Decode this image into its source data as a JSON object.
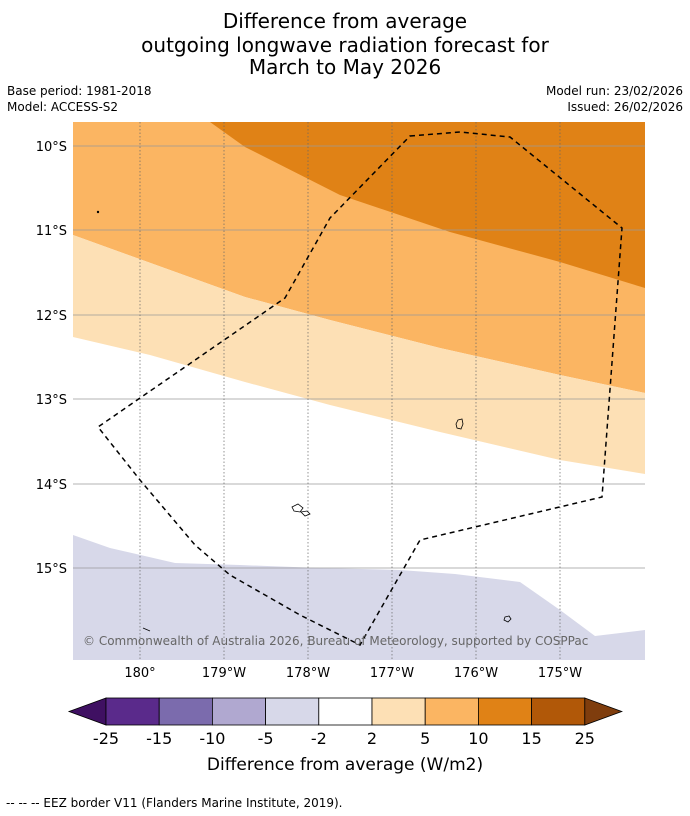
{
  "header": {
    "title_line1": "Difference from average",
    "title_line2": "outgoing longwave radiation forecast for",
    "title_line3": "March to May 2026",
    "base_period": "Base period: 1981-2018",
    "model": "Model: ACCESS-S2",
    "model_run": "Model run: 23/02/2026",
    "issued": "Issued: 26/02/2026"
  },
  "map": {
    "lat_labels": [
      "10°S",
      "11°S",
      "12°S",
      "13°S",
      "14°S",
      "15°S"
    ],
    "lon_labels": [
      "180°",
      "179°W",
      "178°W",
      "177°W",
      "176°W",
      "175°W"
    ],
    "copyright": "© Commonwealth of Australia 2026, Bureau of Meteorology, supported by COSPPac"
  },
  "colorbar": {
    "tick_labels": [
      "-25",
      "-15",
      "-10",
      "-5",
      "-2",
      "2",
      "5",
      "10",
      "15",
      "25"
    ],
    "colors": [
      "#3f1062",
      "#5a2a8b",
      "#7b6bad",
      "#b0a8d0",
      "#d7d8e9",
      "#ffffff",
      "#fde0b5",
      "#fbb562",
      "#e08216",
      "#b15808",
      "#7f3d0d"
    ],
    "label": "Difference from average (W/m2)"
  },
  "footer": {
    "legend_text": "--  --  -- EEZ border V11 (Flanders Marine Institute, 2019)."
  }
}
